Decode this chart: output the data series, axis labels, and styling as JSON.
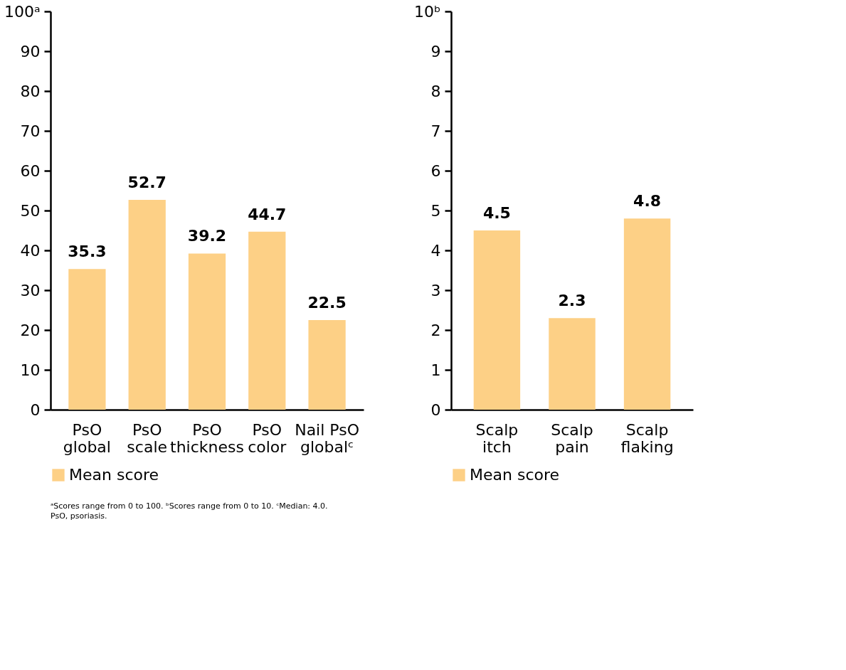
{
  "chart_data": [
    {
      "type": "bar",
      "categories": [
        "PsO\nglobal",
        "PsO\nscale",
        "PsO\nthickness",
        "PsO\ncolor",
        "Nail PsO\nglobalᶜ"
      ],
      "series": [
        {
          "name": "Mean score",
          "color": "#fdd086",
          "values": [
            35.3,
            52.7,
            39.2,
            44.7,
            22.5
          ]
        }
      ],
      "ylim": [
        0,
        100
      ],
      "yticks": [
        0,
        10,
        20,
        30,
        40,
        50,
        60,
        70,
        80,
        90,
        {
          "value": 100,
          "label": "100ᵃ"
        }
      ],
      "data_labels": true,
      "legend": "bottom",
      "grid": false,
      "annotations": [
        "ᵃScores range from 0 to 100. ᵇScores range from 0 to 10. ᶜMedian: 4.0.",
        "PsO, psoriasis."
      ]
    },
    {
      "type": "bar",
      "categories": [
        "Scalp\nitch",
        "Scalp\npain",
        "Scalp\nflaking"
      ],
      "series": [
        {
          "name": "Mean score",
          "color": "#fdd086",
          "values": [
            4.5,
            2.3,
            4.8
          ]
        }
      ],
      "ylim": [
        0,
        10
      ],
      "yticks": [
        0,
        1,
        2,
        3,
        4,
        5,
        6,
        7,
        8,
        9,
        {
          "value": 10,
          "label": "10ᵇ"
        }
      ],
      "data_labels": true,
      "legend": "bottom",
      "grid": false
    }
  ]
}
